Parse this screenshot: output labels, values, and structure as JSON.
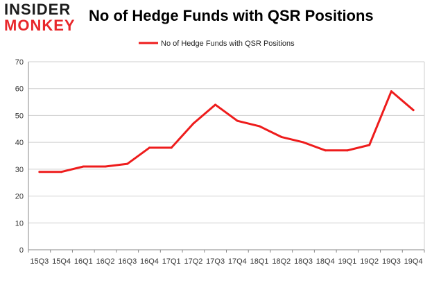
{
  "brand": {
    "line1": "INSIDER",
    "line2": "MONKEY"
  },
  "colors": {
    "series": "#ee1c1c",
    "grid": "#cfcfcf",
    "axis": "#888888",
    "brand_red": "#e8272b"
  },
  "chart_data": {
    "type": "line",
    "title": "No of Hedge Funds with QSR Positions",
    "xlabel": "",
    "ylabel": "",
    "ylim": [
      0,
      70
    ],
    "yticks": [
      0,
      10,
      20,
      30,
      40,
      50,
      60,
      70
    ],
    "grid": true,
    "legend": {
      "position": "top-center",
      "entries": [
        "No of Hedge Funds with QSR Positions"
      ]
    },
    "categories": [
      "15Q3",
      "15Q4",
      "16Q1",
      "16Q2",
      "16Q3",
      "16Q4",
      "17Q1",
      "17Q2",
      "17Q3",
      "17Q4",
      "18Q1",
      "18Q2",
      "18Q3",
      "18Q4",
      "19Q1",
      "19Q2",
      "19Q3",
      "19Q4"
    ],
    "series": [
      {
        "name": "No of Hedge Funds with QSR Positions",
        "values": [
          29,
          29,
          31,
          31,
          32,
          38,
          38,
          47,
          54,
          48,
          46,
          42,
          40,
          37,
          37,
          39,
          59,
          52
        ]
      }
    ]
  }
}
